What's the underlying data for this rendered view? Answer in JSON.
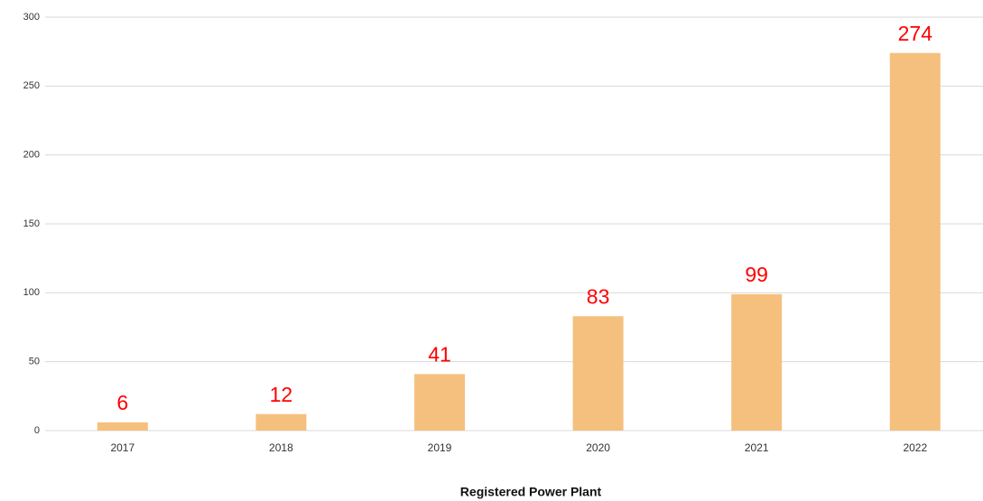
{
  "chart_data": {
    "type": "bar",
    "x_label": "Registered Power Plant",
    "categories": [
      "2017",
      "2018",
      "2019",
      "2020",
      "2021",
      "2022"
    ],
    "values": [
      6,
      12,
      41,
      83,
      99,
      274
    ],
    "color": "#f5c07e",
    "label_color": "#ff0000",
    "ylim": [
      0,
      300
    ],
    "yticks": [
      0,
      50,
      100,
      150,
      200,
      250,
      300
    ],
    "grid": true
  }
}
